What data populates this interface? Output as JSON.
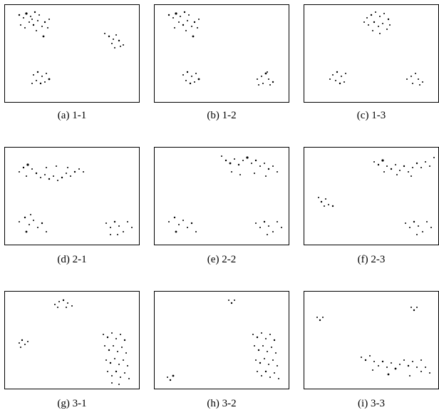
{
  "panels": [
    {
      "caption": "(a) 1-1"
    },
    {
      "caption": "(b) 1-2"
    },
    {
      "caption": "(c) 1-3"
    },
    {
      "caption": "(d) 2-1"
    },
    {
      "caption": "(e) 2-2"
    },
    {
      "caption": "(f) 2-3"
    },
    {
      "caption": "(g) 3-1"
    },
    {
      "caption": "(h) 3-2"
    },
    {
      "caption": "(i) 3-3"
    }
  ],
  "colors": {
    "points": "#000000",
    "frame": "#000000",
    "background": "#ffffff"
  }
}
